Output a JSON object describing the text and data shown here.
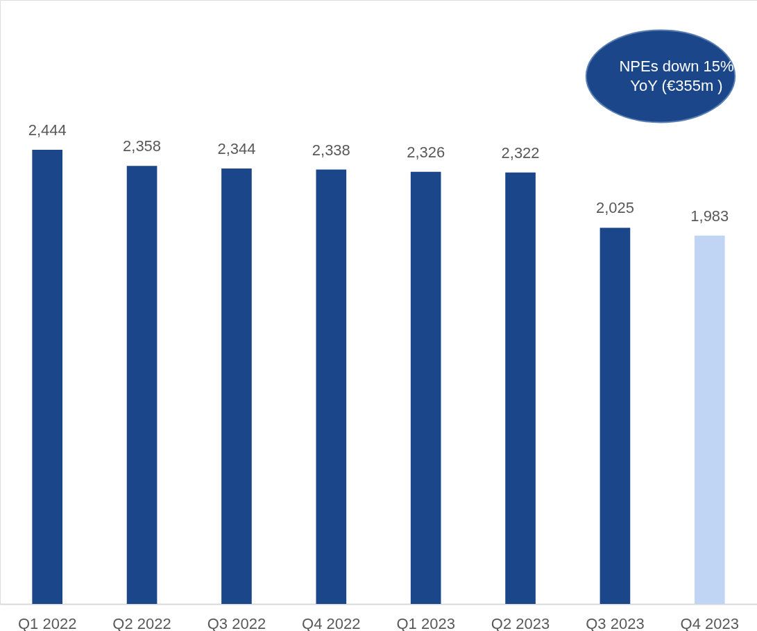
{
  "chart_data": {
    "type": "bar",
    "categories": [
      "Q1 2022",
      "Q2 2022",
      "Q3 2022",
      "Q4 2022",
      "Q1 2023",
      "Q2 2023",
      "Q3 2023",
      "Q4 2023"
    ],
    "values": [
      2444,
      2358,
      2344,
      2338,
      2326,
      2322,
      2025,
      1983
    ],
    "colors": [
      "#1b4689",
      "#1b4689",
      "#1b4689",
      "#1b4689",
      "#1b4689",
      "#1b4689",
      "#1b4689",
      "#c0d4f3"
    ],
    "value_labels": [
      "2,444",
      "2,358",
      "2,344",
      "2,338",
      "2,326",
      "2,322",
      "2,025",
      "1,983"
    ],
    "annotations": [
      "NPEs down 15%\nYoY (€355m )"
    ]
  }
}
